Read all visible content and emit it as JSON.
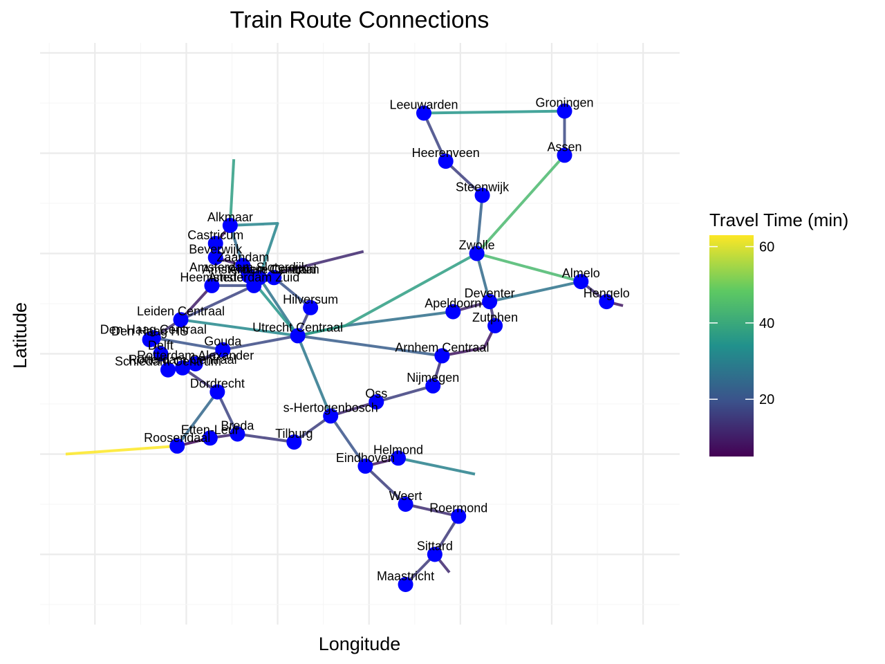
{
  "chart_data": {
    "type": "network",
    "title": "Train Route Connections",
    "xlabel": "Longitude",
    "ylabel": "Latitude",
    "xlim": [
      3.7,
      7.2
    ],
    "ylim": [
      50.65,
      53.55
    ],
    "grid": true,
    "legend": {
      "title": "Travel Time (min)",
      "position": "right",
      "ticks": [
        20,
        40,
        60
      ],
      "range": [
        5,
        63
      ]
    },
    "colorscale": [
      "#440154",
      "#3b528b",
      "#21918c",
      "#5ec962",
      "#fde725"
    ],
    "node_color": "#0000ff",
    "stations": [
      {
        "name": "Leeuwarden",
        "lon": 5.8,
        "lat": 53.2
      },
      {
        "name": "Groningen",
        "lon": 6.57,
        "lat": 53.21
      },
      {
        "name": "Heerenveen",
        "lon": 5.92,
        "lat": 52.96
      },
      {
        "name": "Assen",
        "lon": 6.57,
        "lat": 52.99
      },
      {
        "name": "Steenwijk",
        "lon": 6.12,
        "lat": 52.79
      },
      {
        "name": "Alkmaar",
        "lon": 4.74,
        "lat": 52.64
      },
      {
        "name": "Castricum",
        "lon": 4.66,
        "lat": 52.55
      },
      {
        "name": "Beverwijk",
        "lon": 4.66,
        "lat": 52.48
      },
      {
        "name": "Zaandam",
        "lon": 4.81,
        "lat": 52.44
      },
      {
        "name": "Zwolle",
        "lon": 6.09,
        "lat": 52.5
      },
      {
        "name": "Amsterdam Sloterdijk",
        "lon": 4.84,
        "lat": 52.39
      },
      {
        "name": "Amsterdam Centraal",
        "lon": 4.9,
        "lat": 52.38
      },
      {
        "name": "Amsterdam Zuid",
        "lon": 4.87,
        "lat": 52.34
      },
      {
        "name": "Almere Centrum",
        "lon": 4.98,
        "lat": 52.38
      },
      {
        "name": "Heemstede",
        "lon": 4.64,
        "lat": 52.34
      },
      {
        "name": "Almelo",
        "lon": 6.66,
        "lat": 52.36
      },
      {
        "name": "Hengelo",
        "lon": 6.8,
        "lat": 52.26
      },
      {
        "name": "Deventer",
        "lon": 6.16,
        "lat": 52.26
      },
      {
        "name": "Hilversum",
        "lon": 5.18,
        "lat": 52.23
      },
      {
        "name": "Apeldoorn",
        "lon": 5.96,
        "lat": 52.21
      },
      {
        "name": "Zutphen",
        "lon": 6.19,
        "lat": 52.14
      },
      {
        "name": "Leiden Centraal",
        "lon": 4.47,
        "lat": 52.17
      },
      {
        "name": "Utrecht Centraal",
        "lon": 5.11,
        "lat": 52.09
      },
      {
        "name": "Den Haag Centraal",
        "lon": 4.32,
        "lat": 52.08
      },
      {
        "name": "Den Haag HS",
        "lon": 4.3,
        "lat": 52.07
      },
      {
        "name": "Gouda",
        "lon": 4.7,
        "lat": 52.02
      },
      {
        "name": "Delft",
        "lon": 4.36,
        "lat": 52.0
      },
      {
        "name": "Arnhem Centraal",
        "lon": 5.9,
        "lat": 51.99
      },
      {
        "name": "Rotterdam Alexander",
        "lon": 4.55,
        "lat": 51.95
      },
      {
        "name": "Rotterdam Centraal",
        "lon": 4.48,
        "lat": 51.93
      },
      {
        "name": "Schiedam Centrum",
        "lon": 4.4,
        "lat": 51.92
      },
      {
        "name": "Nijmegen",
        "lon": 5.85,
        "lat": 51.84
      },
      {
        "name": "Dordrecht",
        "lon": 4.67,
        "lat": 51.81
      },
      {
        "name": "Oss",
        "lon": 5.54,
        "lat": 51.76
      },
      {
        "name": "s-Hertogenbosch",
        "lon": 5.29,
        "lat": 51.69
      },
      {
        "name": "Breda",
        "lon": 4.78,
        "lat": 51.6
      },
      {
        "name": "Etten-Leur",
        "lon": 4.63,
        "lat": 51.58
      },
      {
        "name": "Roosendaal",
        "lon": 4.45,
        "lat": 51.54
      },
      {
        "name": "Tilburg",
        "lon": 5.09,
        "lat": 51.56
      },
      {
        "name": "Helmond",
        "lon": 5.66,
        "lat": 51.48
      },
      {
        "name": "Eindhoven",
        "lon": 5.48,
        "lat": 51.44
      },
      {
        "name": "Weert",
        "lon": 5.7,
        "lat": 51.25
      },
      {
        "name": "Roermond",
        "lon": 5.99,
        "lat": 51.19
      },
      {
        "name": "Sittard",
        "lon": 5.86,
        "lat": 51.0
      },
      {
        "name": "Maastricht",
        "lon": 5.7,
        "lat": 50.85
      }
    ],
    "routes": [
      {
        "from": "Leeuwarden",
        "to": "Groningen",
        "time": 35
      },
      {
        "from": "Groningen",
        "to": "Assen",
        "time": 18
      },
      {
        "from": "Leeuwarden",
        "to": "Heerenveen",
        "time": 17
      },
      {
        "from": "Heerenveen",
        "to": "Steenwijk",
        "time": 16
      },
      {
        "from": "Steenwijk",
        "to": "Zwolle",
        "time": 23
      },
      {
        "from": "Assen",
        "to": "Zwolle",
        "time": 44
      },
      {
        "from": "Zwolle",
        "to": "Almelo",
        "time": 44
      },
      {
        "from": "Almelo",
        "to": "Hengelo",
        "time": 13
      },
      {
        "from": "Hengelo",
        "to": "Hengelo end",
        "time": 9,
        "open_end": {
          "lon": 6.89,
          "lat": 52.24
        }
      },
      {
        "from": "Zwolle",
        "to": "Deventer",
        "time": 25
      },
      {
        "from": "Deventer",
        "to": "Almelo",
        "time": 27
      },
      {
        "from": "Deventer",
        "to": "Zutphen",
        "time": 14
      },
      {
        "from": "Zutphen",
        "to": "Arnhem Centraal",
        "time": 9,
        "via": {
          "lon": 6.13,
          "lat": 52.03
        }
      },
      {
        "from": "Deventer",
        "to": "Apeldoorn",
        "time": 11
      },
      {
        "from": "Apeldoorn",
        "to": "Utrecht Centraal",
        "time": 26,
        "via": {
          "lon": 5.37,
          "lat": 52.14
        }
      },
      {
        "from": "Zwolle",
        "to": "Utrecht Centraal",
        "time": 37,
        "via": {
          "lon": 5.37,
          "lat": 52.14
        }
      },
      {
        "from": "Utrecht Centraal",
        "to": "Arnhem Centraal",
        "time": 22
      },
      {
        "from": "Arnhem Centraal",
        "to": "Nijmegen",
        "time": 14
      },
      {
        "from": "Nijmegen",
        "to": "Oss",
        "time": 16
      },
      {
        "from": "Oss",
        "to": "s-Hertogenbosch",
        "time": 12
      },
      {
        "from": "Utrecht Centraal",
        "to": "s-Hertogenbosch",
        "time": 28
      },
      {
        "from": "s-Hertogenbosch",
        "to": "Eindhoven",
        "time": 20
      },
      {
        "from": "s-Hertogenbosch",
        "to": "Tilburg",
        "time": 16
      },
      {
        "from": "Tilburg",
        "to": "Breda",
        "time": 15
      },
      {
        "from": "Breda",
        "to": "Etten-Leur",
        "time": 11
      },
      {
        "from": "Etten-Leur",
        "to": "Roosendaal",
        "time": 7
      },
      {
        "from": "Roosendaal",
        "to": "Roosendaal end",
        "time": 63,
        "open_end": {
          "lon": 3.84,
          "lat": 51.5
        }
      },
      {
        "from": "Breda",
        "to": "Dordrecht",
        "time": 17
      },
      {
        "from": "Dordrecht",
        "to": "Roosendaal",
        "time": 24
      },
      {
        "from": "Dordrecht",
        "to": "Rotterdam Centraal",
        "time": 14
      },
      {
        "from": "Eindhoven",
        "to": "Helmond",
        "time": 9
      },
      {
        "from": "Helmond",
        "to": "Helmond end",
        "time": 30,
        "open_end": {
          "lon": 6.08,
          "lat": 51.4
        }
      },
      {
        "from": "Eindhoven",
        "to": "Weert",
        "time": 16
      },
      {
        "from": "Weert",
        "to": "Roermond",
        "time": 13
      },
      {
        "from": "Roermond",
        "to": "Sittard",
        "time": 15
      },
      {
        "from": "Sittard",
        "to": "Maastricht",
        "time": 15
      },
      {
        "from": "Sittard",
        "to": "Sittard end",
        "time": 12,
        "open_end": {
          "lon": 5.94,
          "lat": 50.91
        }
      },
      {
        "from": "Utrecht Centraal",
        "to": "Hilversum",
        "time": 16
      },
      {
        "from": "Hilversum",
        "to": "Almere Centrum",
        "time": 20
      },
      {
        "from": "Utrecht Centraal",
        "to": "Amsterdam Centraal",
        "time": 27
      },
      {
        "from": "Utrecht Centraal",
        "to": "Amsterdam Sloterdijk",
        "time": 35
      },
      {
        "from": "Utrecht Centraal",
        "to": "Gouda",
        "time": 18
      },
      {
        "from": "Utrecht Centraal",
        "to": "Leiden Centraal",
        "time": 32
      },
      {
        "from": "Amsterdam Centraal",
        "to": "Almere Centrum",
        "time": 20
      },
      {
        "from": "Amsterdam Zuid",
        "to": "Almere Centrum",
        "time": 20
      },
      {
        "from": "Amsterdam Centraal",
        "to": "Amsterdam Centraal end",
        "time": 12,
        "open_end": {
          "lon": 5.47,
          "lat": 52.51
        }
      },
      {
        "from": "Amsterdam Centraal",
        "to": "Alkmaar",
        "time": 31,
        "via": {
          "lon": 5.0,
          "lat": 52.65
        }
      },
      {
        "from": "Amsterdam Sloterdijk",
        "to": "Zaandam",
        "time": 8
      },
      {
        "from": "Zaandam",
        "to": "Alkmaar",
        "time": 25
      },
      {
        "from": "Alkmaar",
        "to": "Alkmaar end",
        "time": 37,
        "open_end": {
          "lon": 4.76,
          "lat": 52.97
        }
      },
      {
        "from": "Alkmaar",
        "to": "Castricum",
        "time": 8
      },
      {
        "from": "Castricum",
        "to": "Beverwijk",
        "time": 7
      },
      {
        "from": "Beverwijk",
        "to": "Zaandam",
        "time": 10
      },
      {
        "from": "Amsterdam Zuid",
        "to": "Heemstede",
        "time": 18
      },
      {
        "from": "Heemstede",
        "to": "Leiden Centraal",
        "time": 10
      },
      {
        "from": "Amsterdam Zuid",
        "to": "Leiden Centraal",
        "time": 17
      },
      {
        "from": "Leiden Centraal",
        "to": "Den Haag Centraal",
        "time": 13
      },
      {
        "from": "Den Haag Centraal",
        "to": "Den Haag HS",
        "time": 5
      },
      {
        "from": "Den Haag HS",
        "to": "Delft",
        "time": 8
      },
      {
        "from": "Delft",
        "to": "Schiedam Centrum",
        "time": 8
      },
      {
        "from": "Schiedam Centrum",
        "to": "Rotterdam Centraal",
        "time": 5
      },
      {
        "from": "Rotterdam Centraal",
        "to": "Rotterdam Alexander",
        "time": 7
      },
      {
        "from": "Rotterdam Alexander",
        "to": "Gouda",
        "time": 12
      },
      {
        "from": "Den Haag Centraal",
        "to": "Gouda",
        "time": 20
      },
      {
        "from": "Gouda",
        "to": "Rotterdam Centraal",
        "time": 15
      }
    ]
  }
}
